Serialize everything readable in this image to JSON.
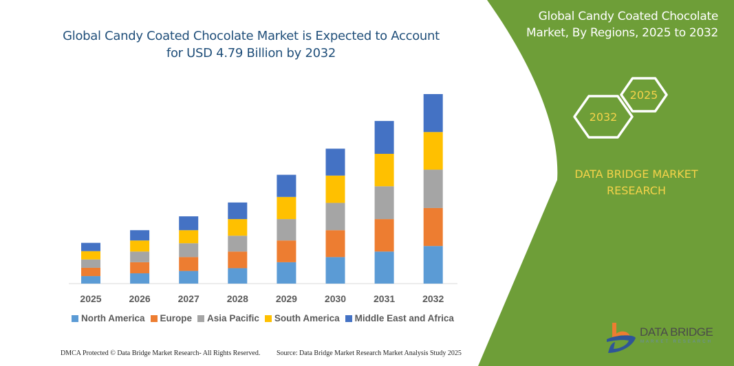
{
  "title": "Global Candy Coated Chocolate Market is Expected to Account for USD 4.79 Billion by 2032",
  "side_panel": {
    "title": "Global Candy Coated Chocolate Market, By Regions, 2025 to 2032",
    "hex_labels": [
      "2032",
      "2025"
    ],
    "brand": "DATA BRIDGE MARKET RESEARCH",
    "logo_text": "DATA BRIDGE",
    "logo_subtext": "MARKET RESEARCH",
    "color": "#6e9e38"
  },
  "footer": {
    "left": "DMCA Protected © Data Bridge Market Research-  All Rights Reserved.",
    "right": "Source: Data Bridge Market Research  Market Analysis Study 2025"
  },
  "chart_data": {
    "type": "bar",
    "stacked": true,
    "title": "Global Candy Coated Chocolate Market is Expected to Account for USD 4.79 Billion by 2032",
    "categories": [
      "2025",
      "2026",
      "2027",
      "2028",
      "2029",
      "2030",
      "2031",
      "2032"
    ],
    "series": [
      {
        "name": "North America",
        "color": "#5b9bd5",
        "values": [
          0.19,
          0.26,
          0.32,
          0.39,
          0.54,
          0.67,
          0.81,
          0.95
        ]
      },
      {
        "name": "Europe",
        "color": "#ed7d31",
        "values": [
          0.21,
          0.28,
          0.35,
          0.42,
          0.55,
          0.68,
          0.82,
          0.96
        ]
      },
      {
        "name": "Asia Pacific",
        "color": "#a5a5a5",
        "values": [
          0.21,
          0.27,
          0.35,
          0.4,
          0.54,
          0.69,
          0.83,
          0.97
        ]
      },
      {
        "name": "South America",
        "color": "#ffc000",
        "values": [
          0.21,
          0.28,
          0.33,
          0.42,
          0.56,
          0.69,
          0.82,
          0.95
        ]
      },
      {
        "name": "Middle East and Africa",
        "color": "#4472c4",
        "values": [
          0.21,
          0.26,
          0.35,
          0.42,
          0.56,
          0.68,
          0.83,
          0.96
        ]
      }
    ],
    "ylabel": "",
    "xlabel": "",
    "ylim": [
      0,
      4.79
    ],
    "grid": false,
    "legend": "bottom"
  }
}
